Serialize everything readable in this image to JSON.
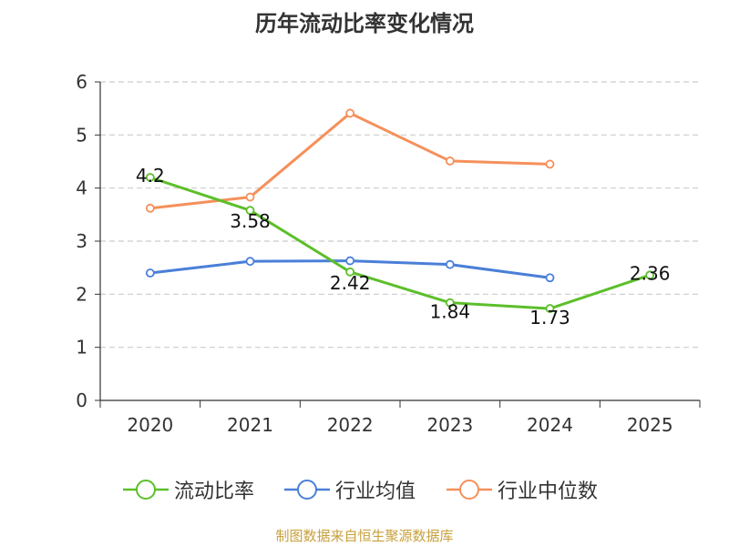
{
  "chart_data": {
    "type": "line",
    "title": "历年流动比率变化情况",
    "categories": [
      "2020",
      "2021",
      "2022",
      "2023",
      "2024",
      "2025"
    ],
    "ylim": [
      0,
      6
    ],
    "yticks": [
      "0",
      "1",
      "2",
      "3",
      "4",
      "5",
      "6"
    ],
    "grid": "horizontal dashed",
    "legend_position": "bottom",
    "series": [
      {
        "name": "流动比率",
        "color": "#5cbf2a",
        "values": [
          4.2,
          3.58,
          2.42,
          1.84,
          1.73,
          2.36
        ],
        "labels": [
          "4.2",
          "3.58",
          "2.42",
          "1.84",
          "1.73",
          "2.36"
        ]
      },
      {
        "name": "行业均值",
        "color": "#4a7fd8",
        "values": [
          2.4,
          2.62,
          2.63,
          2.56,
          2.31,
          null
        ]
      },
      {
        "name": "行业中位数",
        "color": "#f5905a",
        "values": [
          3.62,
          3.83,
          5.41,
          4.51,
          4.45,
          null
        ]
      }
    ]
  },
  "footer": {
    "source": "制图数据来自恒生聚源数据库"
  }
}
